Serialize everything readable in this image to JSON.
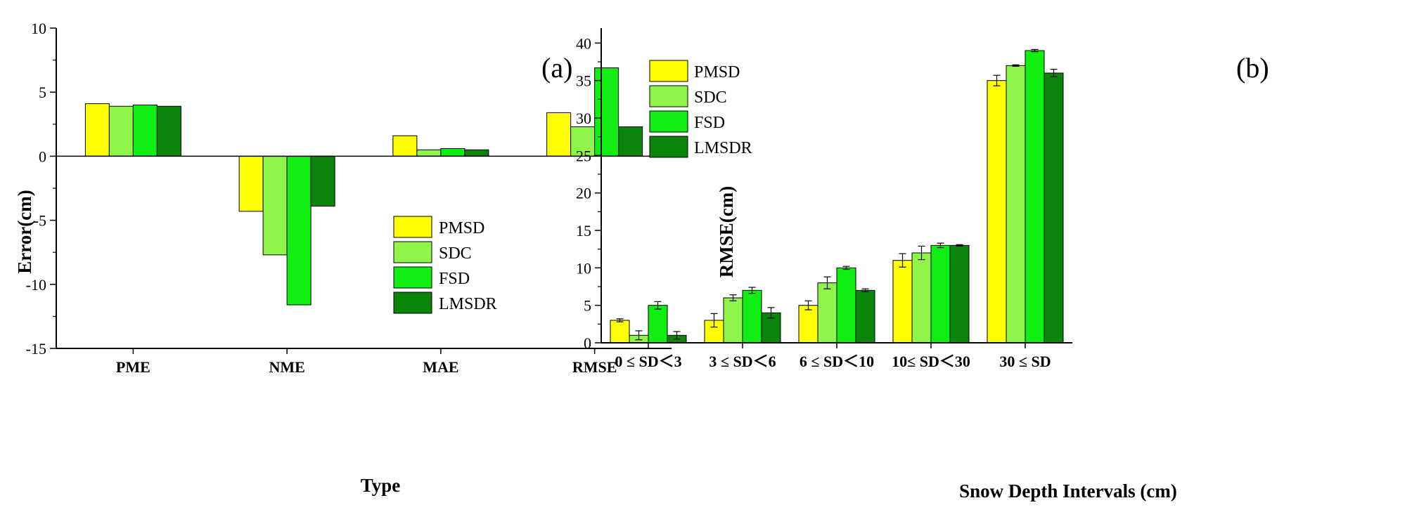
{
  "series_colors": {
    "PMSD": "#ffff00",
    "SDC": "#8ff54a",
    "FSD": "#11ee11",
    "LMSDR": "#0a850a"
  },
  "chart_data": [
    {
      "type": "bar",
      "panel_label": "(a)",
      "title": "",
      "xlabel": "Type",
      "ylabel": "Error(cm)",
      "categories": [
        "PME",
        "NME",
        "MAE",
        "RMSE"
      ],
      "ylim": [
        -15,
        10
      ],
      "yticks": [
        -15,
        -10,
        -5,
        0,
        5,
        10
      ],
      "legend_position": "lower-right",
      "series": [
        {
          "name": "PMSD",
          "values": [
            4.1,
            -4.3,
            1.6,
            3.4
          ]
        },
        {
          "name": "SDC",
          "values": [
            3.9,
            -7.7,
            0.5,
            2.3
          ]
        },
        {
          "name": "FSD",
          "values": [
            4.0,
            -11.6,
            0.6,
            6.9
          ]
        },
        {
          "name": "LMSDR",
          "values": [
            3.9,
            -3.9,
            0.5,
            2.3
          ]
        }
      ]
    },
    {
      "type": "bar",
      "panel_label": "(b)",
      "title": "",
      "xlabel": "Snow Depth Intervals (cm)",
      "ylabel": "RMSE(cm)",
      "categories": [
        "0 ≤ SD＜3",
        "3 ≤ SD＜6",
        "6 ≤ SD＜10",
        "10≤ SD＜30",
        "30 ≤ SD"
      ],
      "ylim": [
        0,
        42
      ],
      "yticks": [
        0,
        5,
        10,
        15,
        20,
        25,
        30,
        35,
        40
      ],
      "legend_position": "top-left",
      "error_bars": true,
      "series": [
        {
          "name": "PMSD",
          "values": [
            3,
            3,
            5,
            11,
            35
          ],
          "errors": [
            0.2,
            0.9,
            0.6,
            0.9,
            0.7
          ]
        },
        {
          "name": "SDC",
          "values": [
            1,
            6,
            8,
            12,
            37
          ],
          "errors": [
            0.6,
            0.4,
            0.8,
            0.9,
            0.1
          ]
        },
        {
          "name": "FSD",
          "values": [
            5,
            7,
            10,
            13,
            39
          ],
          "errors": [
            0.5,
            0.4,
            0.2,
            0.3,
            0.15
          ]
        },
        {
          "name": "LMSDR",
          "values": [
            1,
            4,
            7,
            13,
            36
          ],
          "errors": [
            0.5,
            0.7,
            0.2,
            0.1,
            0.5
          ]
        }
      ]
    }
  ]
}
